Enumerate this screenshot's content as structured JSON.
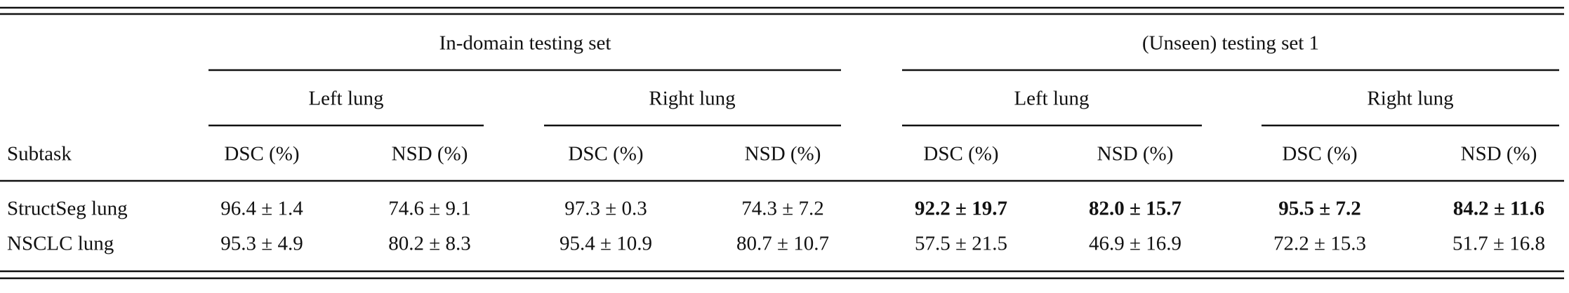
{
  "table": {
    "group_headers": [
      "In-domain testing set",
      "(Unseen) testing set 1"
    ],
    "subgroup_headers": [
      "Left lung",
      "Right lung",
      "Left lung",
      "Right lung"
    ],
    "column_headers": [
      "Subtask",
      "DSC (%)",
      "NSD (%)",
      "DSC (%)",
      "NSD (%)",
      "DSC (%)",
      "NSD (%)",
      "DSC (%)",
      "NSD (%)"
    ],
    "rows": [
      [
        "StructSeg lung",
        "96.4 ± 1.4",
        "74.6 ± 9.1",
        "97.3 ± 0.3",
        "74.3 ± 7.2",
        "92.2 ± 19.7",
        "82.0 ± 15.7",
        "95.5 ± 7.2",
        "84.2 ± 11.6"
      ],
      [
        "NSCLC lung",
        "95.3 ± 4.9",
        "80.2 ± 8.3",
        "95.4 ± 10.9",
        "80.7 ± 10.7",
        "57.5 ± 21.5",
        "46.9 ± 16.9",
        "72.2 ± 15.3",
        "51.7 ± 16.8"
      ]
    ],
    "bold": [
      [
        false,
        false,
        false,
        false,
        false,
        true,
        true,
        true,
        true
      ],
      [
        false,
        false,
        false,
        false,
        false,
        false,
        false,
        false,
        false
      ]
    ]
  }
}
